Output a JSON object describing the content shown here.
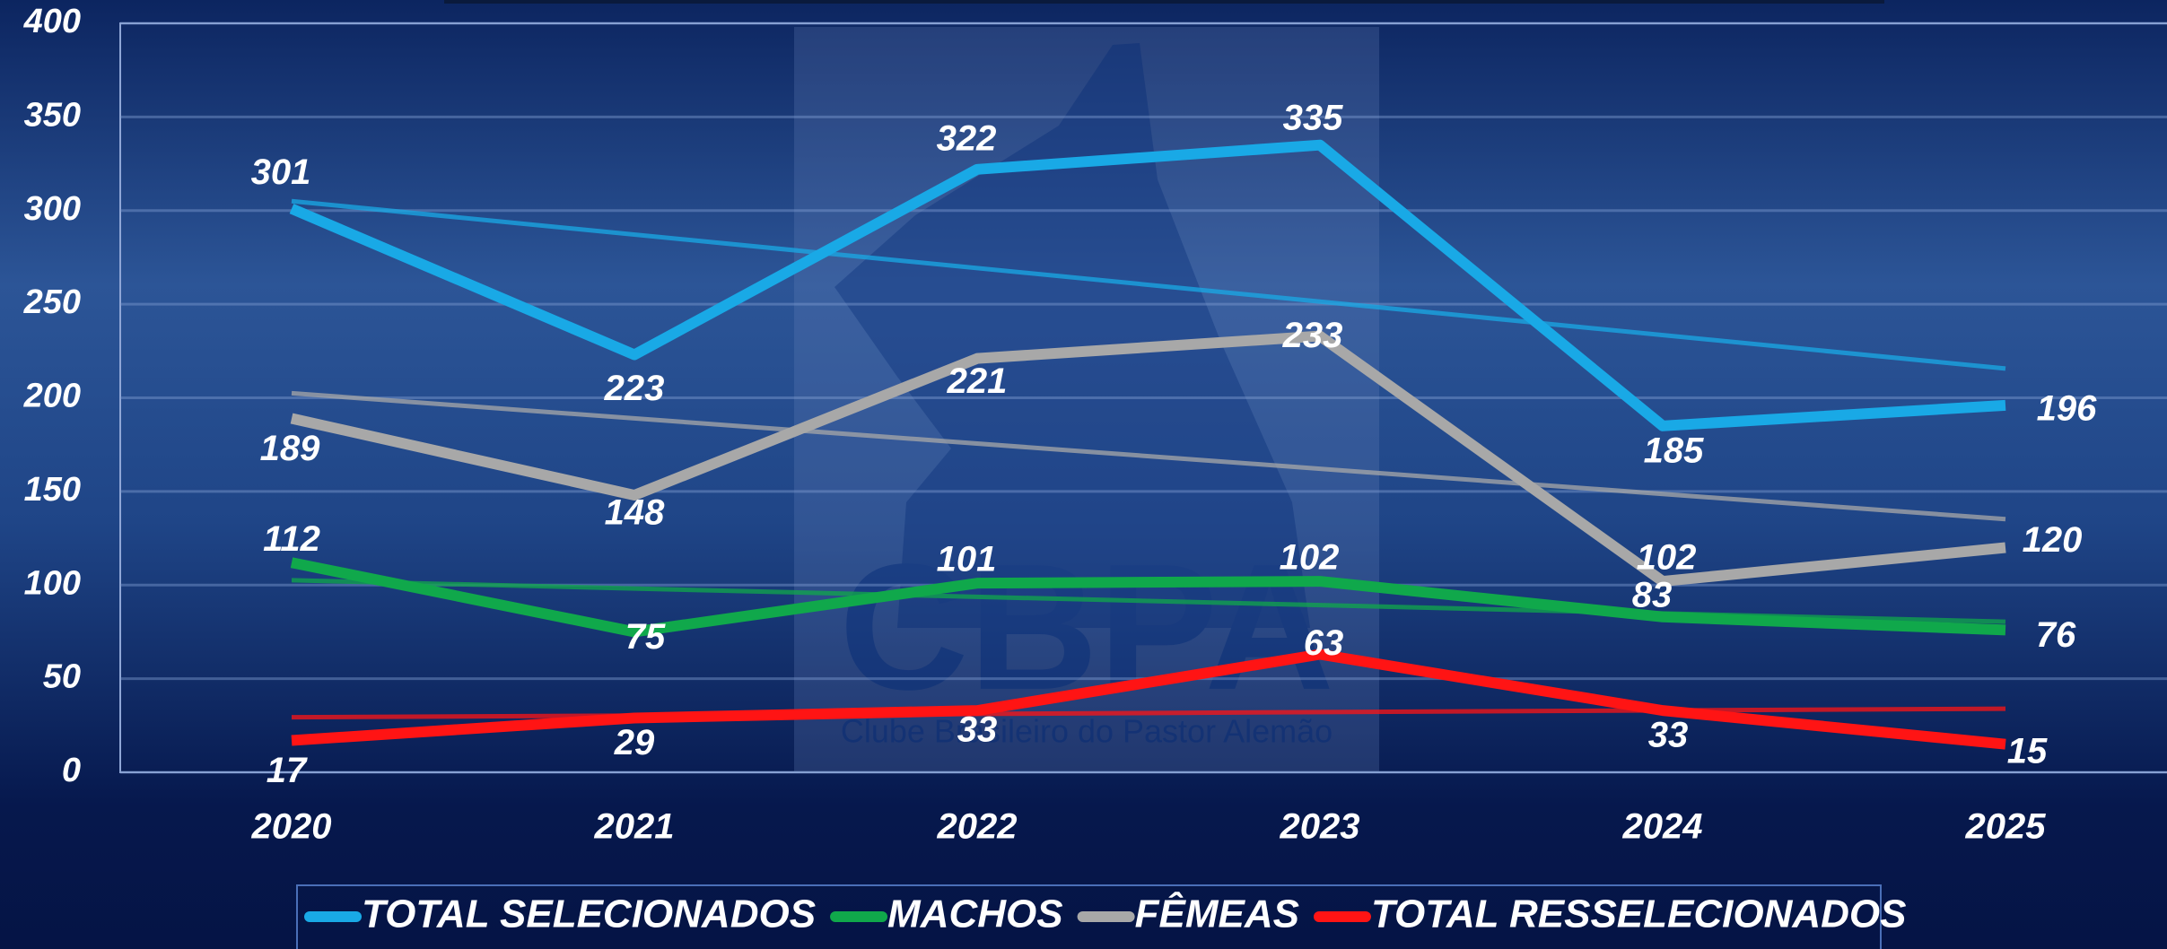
{
  "chart_data": {
    "type": "line",
    "categories": [
      "2020",
      "2021",
      "2022",
      "2023",
      "2024",
      "2025"
    ],
    "series": [
      {
        "name": "TOTAL SELECIONADOS",
        "color": "#19a9e6",
        "values": [
          301,
          223,
          322,
          335,
          185,
          196
        ]
      },
      {
        "name": "MACHOS",
        "color": "#10a84b",
        "values": [
          112,
          75,
          101,
          102,
          83,
          76
        ]
      },
      {
        "name": "FÊMEAS",
        "color": "#a8a8a8",
        "values": [
          189,
          148,
          221,
          233,
          102,
          120
        ]
      },
      {
        "name": "TOTAL RESSELECIONADOS",
        "color": "#ff1414",
        "values": [
          17,
          29,
          33,
          63,
          33,
          15
        ]
      }
    ],
    "ylim": [
      0,
      400
    ],
    "yticks": [
      0,
      50,
      100,
      150,
      200,
      250,
      300,
      350,
      400
    ],
    "grid": true,
    "trendline": true,
    "legend": "bottom",
    "watermark": {
      "logo": "CBPA",
      "text": "Clube Brasileiro do Pastor Alemão"
    }
  }
}
